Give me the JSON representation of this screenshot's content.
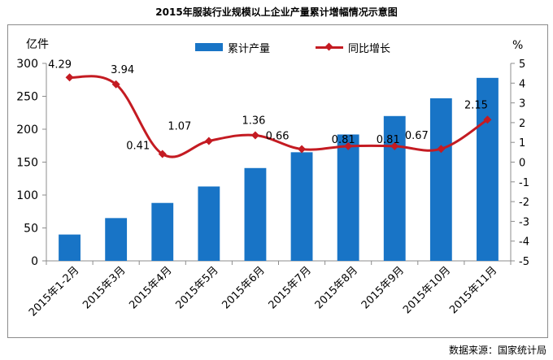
{
  "title": "2015年服装行业规模以上企业产量累计增幅情况示意图",
  "source_note": "数据来源：国家统计局",
  "colors": {
    "bar": "#1874c6",
    "line": "#c41b22",
    "axis": "#8c8c8c"
  },
  "chart_data": {
    "type": "bar",
    "categories": [
      "2015年1-2月",
      "2015年3月",
      "2015年4月",
      "2015年5月",
      "2015年6月",
      "2015年7月",
      "2015年8月",
      "2015年9月",
      "2015年10月",
      "2015年11月"
    ],
    "series": [
      {
        "name": "累计产量",
        "type": "bar",
        "axis": "left",
        "values": [
          40,
          65,
          88,
          113,
          141,
          165,
          192,
          220,
          247,
          278
        ]
      },
      {
        "name": "同比增长",
        "type": "line",
        "axis": "right",
        "values": [
          4.29,
          3.94,
          0.41,
          1.07,
          1.36,
          0.66,
          0.81,
          0.81,
          0.67,
          2.15
        ],
        "labels": [
          "4.29",
          "3.94",
          "0.41",
          "1.07",
          "1.36",
          "0.66",
          "0.81",
          "0.81",
          "0.67",
          "2.15"
        ]
      }
    ],
    "y_left": {
      "label": "亿件",
      "ylim": [
        0,
        300
      ],
      "ticks": [
        0,
        50,
        100,
        150,
        200,
        250,
        300
      ]
    },
    "y_right": {
      "label": "%",
      "ylim": [
        -5,
        5
      ],
      "ticks": [
        5,
        4,
        3,
        2,
        1,
        0,
        -1,
        -2,
        -3,
        -4,
        -5
      ]
    },
    "grid": false,
    "legend_position": "top-center"
  }
}
